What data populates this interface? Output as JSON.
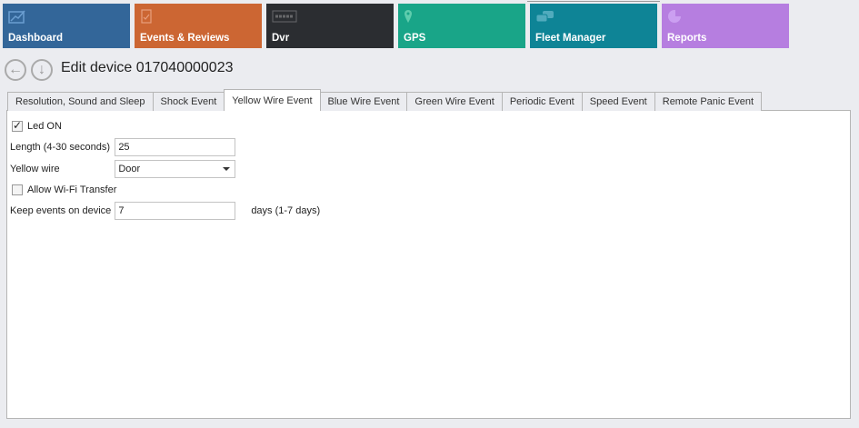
{
  "tiles": [
    {
      "label": "Dashboard",
      "color": "#336699",
      "icon": "chart-trend-icon"
    },
    {
      "label": "Events & Reviews",
      "color": "#cc6633",
      "icon": "clipboard-check-icon"
    },
    {
      "label": "Dvr",
      "color": "#2b2d31",
      "icon": "dvr-icon"
    },
    {
      "label": "GPS",
      "color": "#19a588",
      "icon": "map-pin-icon"
    },
    {
      "label": "Fleet Manager",
      "color": "#0e8496",
      "icon": "cars-icon"
    },
    {
      "label": "Reports",
      "color": "#b67ee0",
      "icon": "pie-chart-icon"
    }
  ],
  "header": {
    "title": "Edit device 017040000023"
  },
  "tabs": [
    "Resolution, Sound and Sleep",
    "Shock Event",
    "Yellow Wire Event",
    "Blue Wire Event",
    "Green Wire Event",
    "Periodic Event",
    "Speed Event",
    "Remote Panic Event"
  ],
  "active_tab": "Yellow Wire Event",
  "form": {
    "led_label": "Led ON",
    "led_checked": true,
    "length_label": "Length (4-30 seconds)",
    "length_value": "25",
    "yellow_label": "Yellow wire",
    "yellow_value": "Door",
    "wifi_label": "Allow Wi-Fi Transfer",
    "wifi_checked": false,
    "keep_label": "Keep events on device",
    "keep_value": "7",
    "keep_suffix": "days (1-7 days)"
  }
}
